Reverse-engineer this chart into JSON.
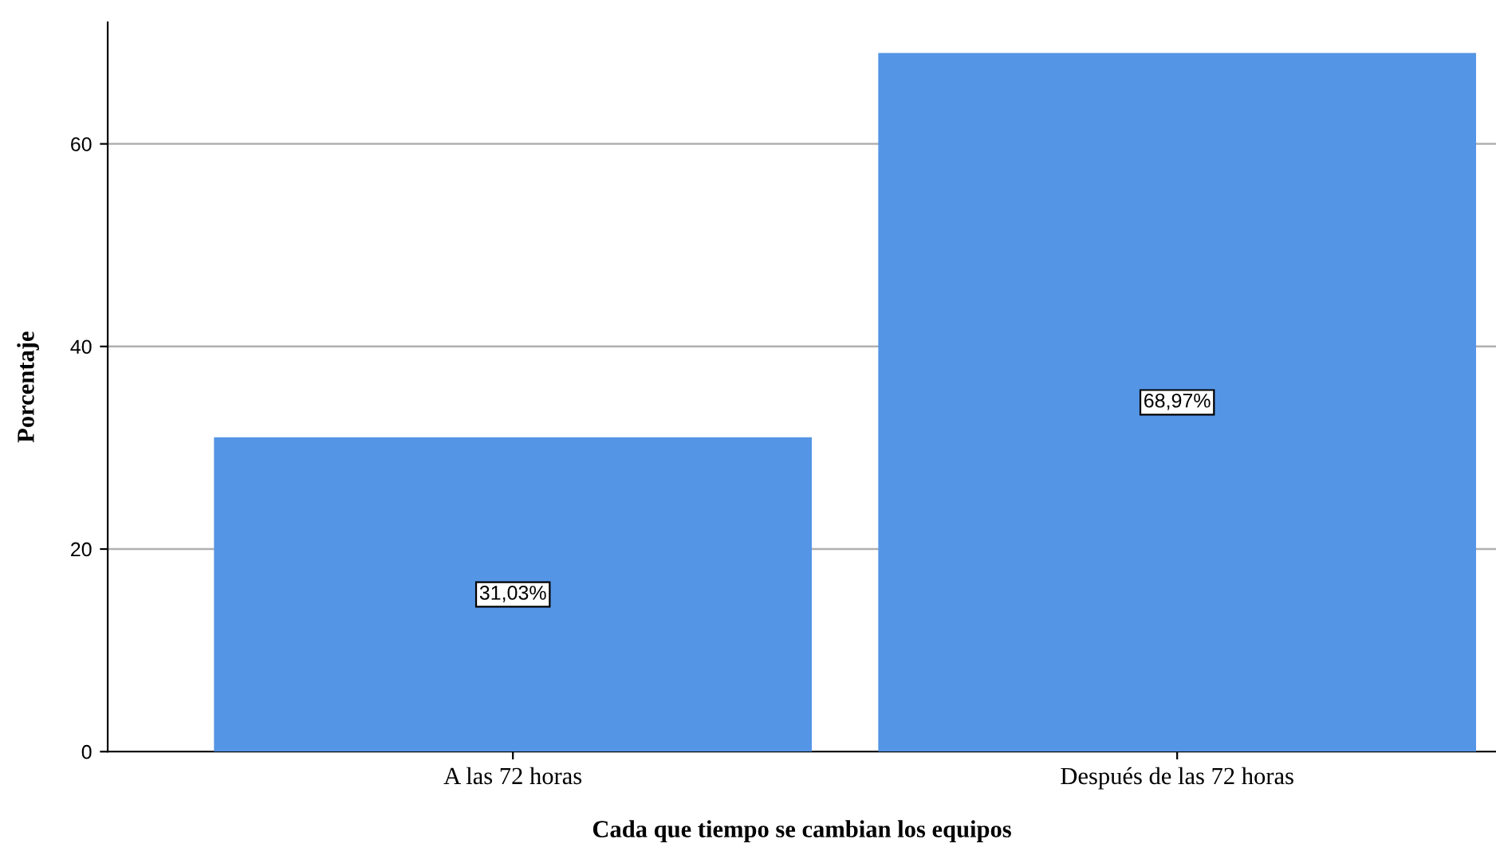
{
  "chart_data": {
    "type": "bar",
    "xlabel": "Cada que tiempo se cambian los equipos",
    "ylabel": "Porcentaje",
    "categories": [
      "A las 72 horas",
      "Después de las 72 horas"
    ],
    "values": [
      31.03,
      68.97
    ],
    "value_labels": [
      "31,03%",
      "68,97%"
    ],
    "color": "#5595e5",
    "ylim": [
      0,
      72
    ],
    "yticks": [
      0,
      20,
      40,
      60
    ],
    "grid": "y",
    "legend": false
  }
}
